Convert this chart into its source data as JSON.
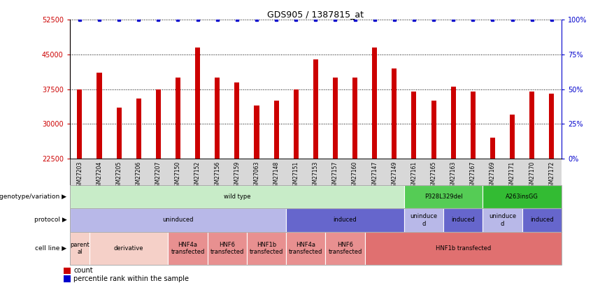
{
  "title": "GDS905 / 1387815_at",
  "samples": [
    "GSM27203",
    "GSM27204",
    "GSM27205",
    "GSM27206",
    "GSM27207",
    "GSM27150",
    "GSM27152",
    "GSM27156",
    "GSM27159",
    "GSM27063",
    "GSM27148",
    "GSM27151",
    "GSM27153",
    "GSM27157",
    "GSM27160",
    "GSM27147",
    "GSM27149",
    "GSM27161",
    "GSM27165",
    "GSM27163",
    "GSM27167",
    "GSM27169",
    "GSM27171",
    "GSM27170",
    "GSM27172"
  ],
  "counts": [
    37500,
    41000,
    33500,
    35500,
    37500,
    40000,
    46500,
    40000,
    39000,
    34000,
    35000,
    37500,
    44000,
    40000,
    40000,
    46500,
    42000,
    37000,
    35000,
    38000,
    37000,
    27000,
    32000,
    37000,
    36500
  ],
  "percentile": [
    100,
    100,
    100,
    100,
    100,
    100,
    100,
    100,
    100,
    100,
    100,
    100,
    100,
    100,
    100,
    100,
    100,
    100,
    100,
    100,
    100,
    100,
    100,
    100,
    100
  ],
  "ylim_left": [
    22500,
    52500
  ],
  "ylim_right": [
    0,
    100
  ],
  "yticks_left": [
    22500,
    30000,
    37500,
    45000,
    52500
  ],
  "yticks_right": [
    0,
    25,
    50,
    75,
    100
  ],
  "bar_color": "#cc0000",
  "percentile_color": "#0000cc",
  "annotation_rows": [
    {
      "label": "genotype/variation",
      "segments": [
        {
          "text": "wild type",
          "start": 0,
          "end": 17,
          "color": "#c8ecc8",
          "text_color": "#000000"
        },
        {
          "text": "P328L329del",
          "start": 17,
          "end": 21,
          "color": "#55cc55",
          "text_color": "#000000"
        },
        {
          "text": "A263insGG",
          "start": 21,
          "end": 25,
          "color": "#33bb33",
          "text_color": "#000000"
        }
      ]
    },
    {
      "label": "protocol",
      "segments": [
        {
          "text": "uninduced",
          "start": 0,
          "end": 11,
          "color": "#b8b8e8",
          "text_color": "#000000"
        },
        {
          "text": "induced",
          "start": 11,
          "end": 17,
          "color": "#6666cc",
          "text_color": "#000000"
        },
        {
          "text": "uninduce\nd",
          "start": 17,
          "end": 19,
          "color": "#b8b8e8",
          "text_color": "#000000"
        },
        {
          "text": "induced",
          "start": 19,
          "end": 21,
          "color": "#6666cc",
          "text_color": "#000000"
        },
        {
          "text": "uninduce\nd",
          "start": 21,
          "end": 23,
          "color": "#b8b8e8",
          "text_color": "#000000"
        },
        {
          "text": "induced",
          "start": 23,
          "end": 25,
          "color": "#6666cc",
          "text_color": "#000000"
        }
      ]
    },
    {
      "label": "cell line",
      "segments": [
        {
          "text": "parent\nal",
          "start": 0,
          "end": 1,
          "color": "#f5d0c8",
          "text_color": "#000000"
        },
        {
          "text": "derivative",
          "start": 1,
          "end": 5,
          "color": "#f5d0c8",
          "text_color": "#000000"
        },
        {
          "text": "HNF4a\ntransfected",
          "start": 5,
          "end": 7,
          "color": "#e89090",
          "text_color": "#000000"
        },
        {
          "text": "HNF6\ntransfected",
          "start": 7,
          "end": 9,
          "color": "#e89090",
          "text_color": "#000000"
        },
        {
          "text": "HNF1b\ntransfected",
          "start": 9,
          "end": 11,
          "color": "#e89090",
          "text_color": "#000000"
        },
        {
          "text": "HNF4a\ntransfected",
          "start": 11,
          "end": 13,
          "color": "#e89090",
          "text_color": "#000000"
        },
        {
          "text": "HNF6\ntransfected",
          "start": 13,
          "end": 15,
          "color": "#e89090",
          "text_color": "#000000"
        },
        {
          "text": "HNF1b transfected",
          "start": 15,
          "end": 25,
          "color": "#e07070",
          "text_color": "#000000"
        }
      ]
    }
  ],
  "legend_items": [
    {
      "label": "count",
      "color": "#cc0000"
    },
    {
      "label": "percentile rank within the sample",
      "color": "#0000cc"
    }
  ]
}
